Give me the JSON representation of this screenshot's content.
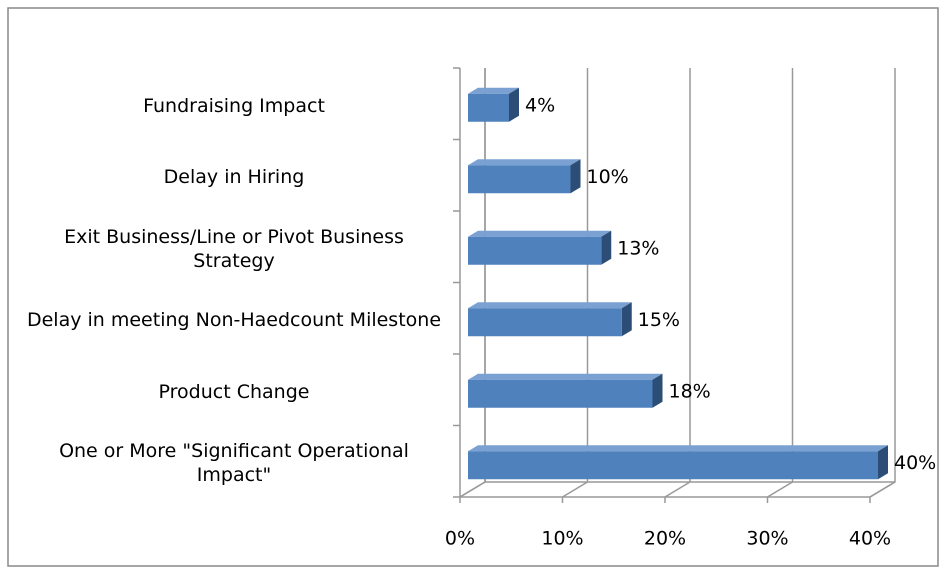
{
  "chart_data": {
    "type": "bar",
    "orientation": "horizontal",
    "categories": [
      "Fundraising Impact",
      "Delay in Hiring",
      "Exit Business/Line or Pivot Business Strategy",
      "Delay in meeting Non-Haedcount Milestone",
      "Product Change",
      "One or More \"Significant Operational Impact\""
    ],
    "values": [
      4,
      10,
      13,
      15,
      18,
      40
    ],
    "value_labels": [
      "4%",
      "10%",
      "13%",
      "15%",
      "18%",
      "40%"
    ],
    "color": "#4f81bd",
    "xlim": [
      0,
      40
    ],
    "xticks": [
      {
        "value": 0,
        "label": "0%"
      },
      {
        "value": 10,
        "label": "10%"
      },
      {
        "value": 20,
        "label": "20%"
      },
      {
        "value": 30,
        "label": "30%"
      },
      {
        "value": 40,
        "label": "40%"
      }
    ],
    "grid": true
  }
}
